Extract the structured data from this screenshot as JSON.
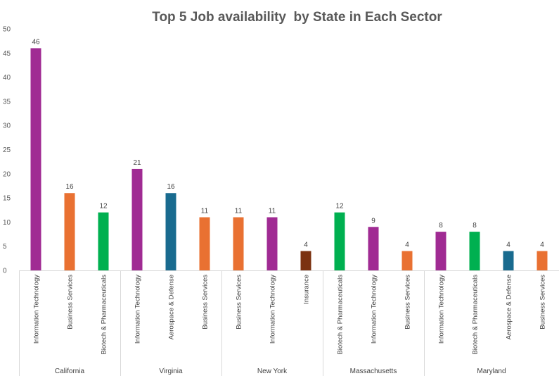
{
  "chart_data": {
    "type": "bar",
    "title": "Top 5 Job availability  by State in Each Sector",
    "xlabel": "",
    "ylabel": "",
    "ylim": [
      0,
      50
    ],
    "y_ticks": [
      0,
      5,
      10,
      15,
      20,
      25,
      30,
      35,
      40,
      45,
      50
    ],
    "grid": false,
    "legend": "none",
    "data_labels": true,
    "sector_colors": {
      "Information Technology": "#A02B93",
      "Business Services": "#E97132",
      "Biotech & Pharmaceuticals": "#00B050",
      "Aerospace & Defense": "#196B8F",
      "Insurance": "#7B3211"
    },
    "groups": [
      {
        "name": "California",
        "bars": [
          {
            "category": "Information Technology",
            "value": 46
          },
          {
            "category": "Business Services",
            "value": 16
          },
          {
            "category": "Biotech & Pharmaceuticals",
            "value": 12
          }
        ]
      },
      {
        "name": "Virginia",
        "bars": [
          {
            "category": "Information Technology",
            "value": 21
          },
          {
            "category": "Aerospace & Defense",
            "value": 16
          },
          {
            "category": "Business Services",
            "value": 11
          }
        ]
      },
      {
        "name": "New York",
        "bars": [
          {
            "category": "Business Services",
            "value": 11
          },
          {
            "category": "Information Technology",
            "value": 11
          },
          {
            "category": "Insurance",
            "value": 4
          }
        ]
      },
      {
        "name": "Massachusetts",
        "bars": [
          {
            "category": "Biotech & Pharmaceuticals",
            "value": 12
          },
          {
            "category": "Information Technology",
            "value": 9
          },
          {
            "category": "Business Services",
            "value": 4
          }
        ]
      },
      {
        "name": "Maryland",
        "bars": [
          {
            "category": "Information Technology",
            "value": 8
          },
          {
            "category": "Biotech & Pharmaceuticals",
            "value": 8
          },
          {
            "category": "Aerospace & Defense",
            "value": 4
          },
          {
            "category": "Business Services",
            "value": 4
          }
        ]
      }
    ]
  }
}
